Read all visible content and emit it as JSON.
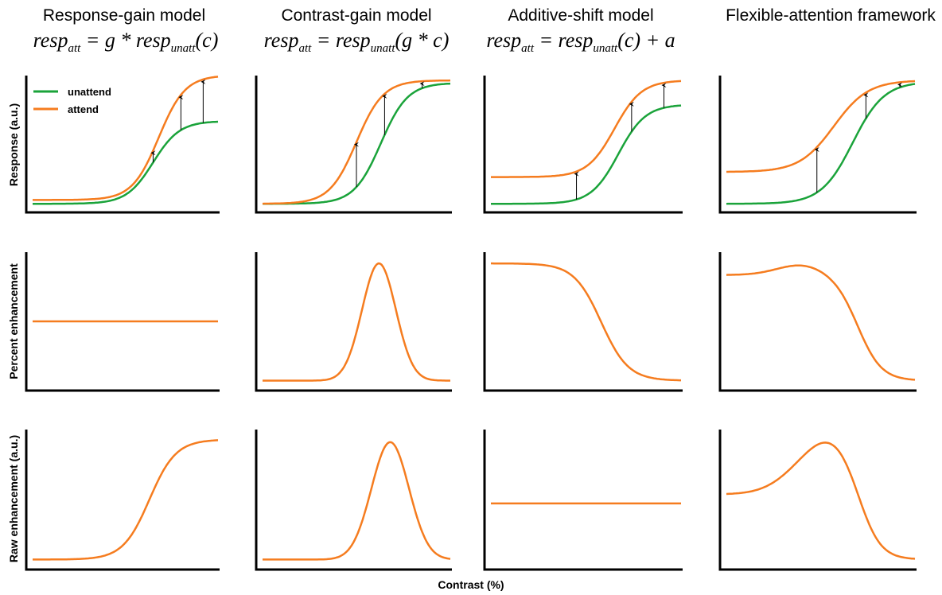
{
  "columns": [
    {
      "title": "Response-gain model",
      "eq": {
        "a": "resp",
        "a_sub": "att",
        "b": " = g * resp",
        "b_sub": "unatt",
        "c": "(c)"
      }
    },
    {
      "title": "Contrast-gain model",
      "eq": {
        "a": "resp",
        "a_sub": "att",
        "b": " = resp",
        "b_sub": "unatt",
        "c": "(g * c)"
      }
    },
    {
      "title": "Additive-shift model",
      "eq": {
        "a": "resp",
        "a_sub": "att",
        "b": " = resp",
        "b_sub": "unatt",
        "c": "(c) + a"
      }
    },
    {
      "title": "Flexible-attention framework",
      "eq": {
        "a": "",
        "a_sub": "",
        "b": "",
        "b_sub": "",
        "c": ""
      }
    }
  ],
  "row_labels": [
    "Response (a.u.)",
    "Percent enhancement",
    "Raw enhancement (a.u.)"
  ],
  "x_label": "Contrast (%)",
  "legend": {
    "unattend": "unattend",
    "attend": "attend"
  },
  "colors": {
    "unattend": "#1aa33a",
    "attend": "#f57c1f",
    "axis": "#000000",
    "arrow": "#000000"
  },
  "chart_data": [
    {
      "type": "line",
      "panel": "response-gain / response",
      "x": [
        0,
        1
      ],
      "ylim": [
        0,
        1
      ],
      "series": [
        {
          "name": "unattend",
          "model": {
            "kind": "sig",
            "b": 0.03,
            "a": 0.65,
            "c0": 0.8,
            "k": 14
          }
        },
        {
          "name": "attend",
          "model": {
            "kind": "sig",
            "b": 0.06,
            "a": 0.98,
            "c0": 0.83,
            "k": 14
          }
        }
      ],
      "arrows_x": [
        0.65,
        0.8,
        0.92
      ]
    },
    {
      "type": "line",
      "panel": "contrast-gain / response",
      "x": [
        0,
        1
      ],
      "ylim": [
        0,
        1
      ],
      "series": [
        {
          "name": "unattend",
          "model": {
            "kind": "sig",
            "b": 0.03,
            "a": 0.95,
            "c0": 0.78,
            "k": 14
          }
        },
        {
          "name": "attend",
          "model": {
            "kind": "sig",
            "b": 0.03,
            "a": 0.97,
            "c0": 0.65,
            "k": 14
          }
        }
      ],
      "arrows_x": [
        0.5,
        0.65,
        0.85
      ]
    },
    {
      "type": "line",
      "panel": "additive-shift / response",
      "x": [
        0,
        1
      ],
      "ylim": [
        0,
        1
      ],
      "series": [
        {
          "name": "unattend",
          "model": {
            "kind": "sig",
            "b": 0.03,
            "a": 0.78,
            "c0": 0.82,
            "k": 14
          }
        },
        {
          "name": "attend",
          "model": {
            "kind": "sig",
            "b": 0.24,
            "a": 0.76,
            "c0": 0.8,
            "k": 14
          }
        }
      ],
      "arrows_x": [
        0.45,
        0.74,
        0.91
      ]
    },
    {
      "type": "line",
      "panel": "flexible-attention / response",
      "x": [
        0,
        1
      ],
      "ylim": [
        0,
        1
      ],
      "series": [
        {
          "name": "unattend",
          "model": {
            "kind": "sig",
            "b": 0.03,
            "a": 0.96,
            "c0": 0.82,
            "k": 12
          }
        },
        {
          "name": "attend",
          "model": {
            "kind": "sig",
            "b": 0.28,
            "a": 0.72,
            "c0": 0.72,
            "k": 11
          }
        }
      ],
      "arrows_x": [
        0.48,
        0.74,
        0.92
      ]
    },
    {
      "type": "line",
      "panel": "response-gain / percent",
      "x": [
        0,
        1
      ],
      "ylim": [
        0,
        1
      ],
      "series": [
        {
          "name": "attend",
          "model": {
            "kind": "flat",
            "v": 0.5
          }
        }
      ]
    },
    {
      "type": "line",
      "panel": "contrast-gain / percent",
      "x": [
        0,
        1
      ],
      "ylim": [
        0,
        1
      ],
      "series": [
        {
          "name": "attend",
          "model": {
            "kind": "gauss",
            "b": 0.04,
            "a": 0.91,
            "mu": 0.62,
            "s": 0.09
          }
        }
      ]
    },
    {
      "type": "line",
      "panel": "additive-shift / percent",
      "x": [
        0,
        1
      ],
      "ylim": [
        0,
        1
      ],
      "series": [
        {
          "name": "attend",
          "model": {
            "kind": "dsig",
            "b": 0.04,
            "a": 0.91,
            "c0": 0.58,
            "k": 14
          }
        }
      ]
    },
    {
      "type": "line",
      "panel": "flexible-attention / percent",
      "x": [
        0,
        1
      ],
      "ylim": [
        0,
        1
      ],
      "series": [
        {
          "name": "attend",
          "model": {
            "kind": "flexp"
          }
        }
      ]
    },
    {
      "type": "line",
      "panel": "response-gain / raw",
      "x": [
        0,
        1
      ],
      "ylim": [
        0,
        1
      ],
      "series": [
        {
          "name": "attend",
          "model": {
            "kind": "sig",
            "b": 0.04,
            "a": 0.92,
            "c0": 0.78,
            "k": 14
          }
        }
      ]
    },
    {
      "type": "line",
      "panel": "contrast-gain / raw",
      "x": [
        0,
        1
      ],
      "ylim": [
        0,
        1
      ],
      "series": [
        {
          "name": "attend",
          "model": {
            "kind": "gauss",
            "b": 0.04,
            "a": 0.9,
            "mu": 0.68,
            "s": 0.1
          }
        }
      ]
    },
    {
      "type": "line",
      "panel": "additive-shift / raw",
      "x": [
        0,
        1
      ],
      "ylim": [
        0,
        1
      ],
      "series": [
        {
          "name": "attend",
          "model": {
            "kind": "flat",
            "v": 0.47
          }
        }
      ]
    },
    {
      "type": "line",
      "panel": "flexible-attention / raw",
      "x": [
        0,
        1
      ],
      "ylim": [
        0,
        1
      ],
      "series": [
        {
          "name": "attend",
          "model": {
            "kind": "flexr"
          }
        }
      ]
    }
  ]
}
